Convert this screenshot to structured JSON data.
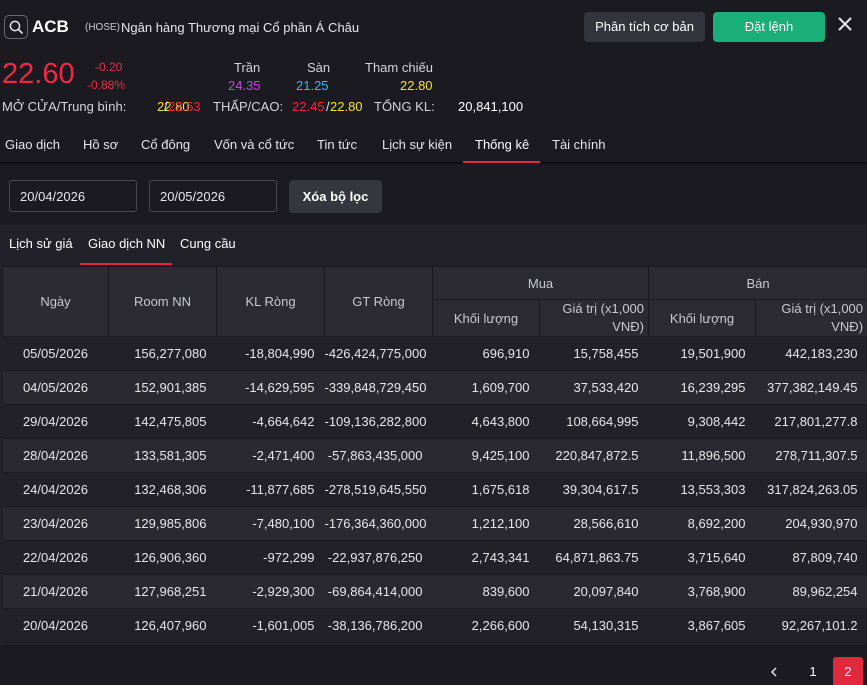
{
  "header": {
    "ticker": "ACB",
    "exchange": "(HOSE)",
    "company": "Ngân hàng Thương mại Cổ phần Á Châu",
    "analysis_label": "Phân tích cơ bản",
    "order_label": "Đặt lệnh"
  },
  "quote": {
    "price": "22.60",
    "change": "-0.20",
    "change_pct": "-0.88%",
    "ceiling_label": "Trần",
    "ceiling": "24.35",
    "floor_label": "Sàn",
    "floor": "21.25",
    "ref_label": "Tham chiếu",
    "ref": "22.80",
    "open_avg_label": "MỞ CỬA/Trung bình:",
    "open": "22.80",
    "avg": "22.63",
    "low_high_label": "THẤP/CAO:",
    "low": "22.45",
    "high": "22.80",
    "volume_label": "TỔNG KL:",
    "volume": "20,841,100",
    "slash": "/"
  },
  "tabs": [
    "Giao dịch",
    "Hồ sơ",
    "Cổ đông",
    "Vốn và cổ tức",
    "Tin tức",
    "Lịch sự kiện",
    "Thống kê",
    "Tài chính"
  ],
  "filter": {
    "from_date": "20/04/2026",
    "to_date": "20/05/2026",
    "clear_label": "Xóa bộ lọc"
  },
  "subtabs": [
    "Lịch sử giá",
    "Giao dịch NN",
    "Cung cầu"
  ],
  "table": {
    "headers": {
      "date": "Ngày",
      "room": "Room NN",
      "net_vol": "KL Ròng",
      "net_val": "GT Ròng",
      "buy": "Mua",
      "sell": "Bán",
      "buy_vol": "Khối lượng",
      "buy_val": "Giá trị (x1,000 VNĐ)",
      "sell_vol": "Khối lượng",
      "sell_val": "Giá trị (x1,000 VNĐ)"
    },
    "rows": [
      [
        "05/05/2026",
        "156,277,080",
        "-18,804,990",
        "-426,424,775,000",
        "696,910",
        "15,758,455",
        "19,501,900",
        "442,183,230"
      ],
      [
        "04/05/2026",
        "152,901,385",
        "-14,629,595",
        "-339,848,729,450",
        "1,609,700",
        "37,533,420",
        "16,239,295",
        "377,382,149.45"
      ],
      [
        "29/04/2026",
        "142,475,805",
        "-4,664,642",
        "-109,136,282,800",
        "4,643,800",
        "108,664,995",
        "9,308,442",
        "217,801,277.8"
      ],
      [
        "28/04/2026",
        "133,581,305",
        "-2,471,400",
        "-57,863,435,000",
        "9,425,100",
        "220,847,872.5",
        "11,896,500",
        "278,711,307.5"
      ],
      [
        "24/04/2026",
        "132,468,306",
        "-11,877,685",
        "-278,519,645,550",
        "1,675,618",
        "39,304,617.5",
        "13,553,303",
        "317,824,263.05"
      ],
      [
        "23/04/2026",
        "129,985,806",
        "-7,480,100",
        "-176,364,360,000",
        "1,212,100",
        "28,566,610",
        "8,692,200",
        "204,930,970"
      ],
      [
        "22/04/2026",
        "126,906,360",
        "-972,299",
        "-22,937,876,250",
        "2,743,341",
        "64,871,863.75",
        "3,715,640",
        "87,809,740"
      ],
      [
        "21/04/2026",
        "127,968,251",
        "-2,929,300",
        "-69,864,414,000",
        "839,600",
        "20,097,840",
        "3,768,900",
        "89,962,254"
      ],
      [
        "20/04/2026",
        "126,407,960",
        "-1,601,005",
        "-38,136,786,200",
        "2,266,600",
        "54,130,315",
        "3,867,605",
        "92,267,101.2"
      ]
    ]
  },
  "pagination": {
    "page1": "1",
    "page2": "2"
  },
  "colors": {
    "down": "#ee2a44",
    "ceiling": "#d43ee6",
    "floor": "#3ab8f0",
    "reference": "#f4e13c",
    "accent": "#e2283c",
    "order_button": "#1aae78"
  }
}
